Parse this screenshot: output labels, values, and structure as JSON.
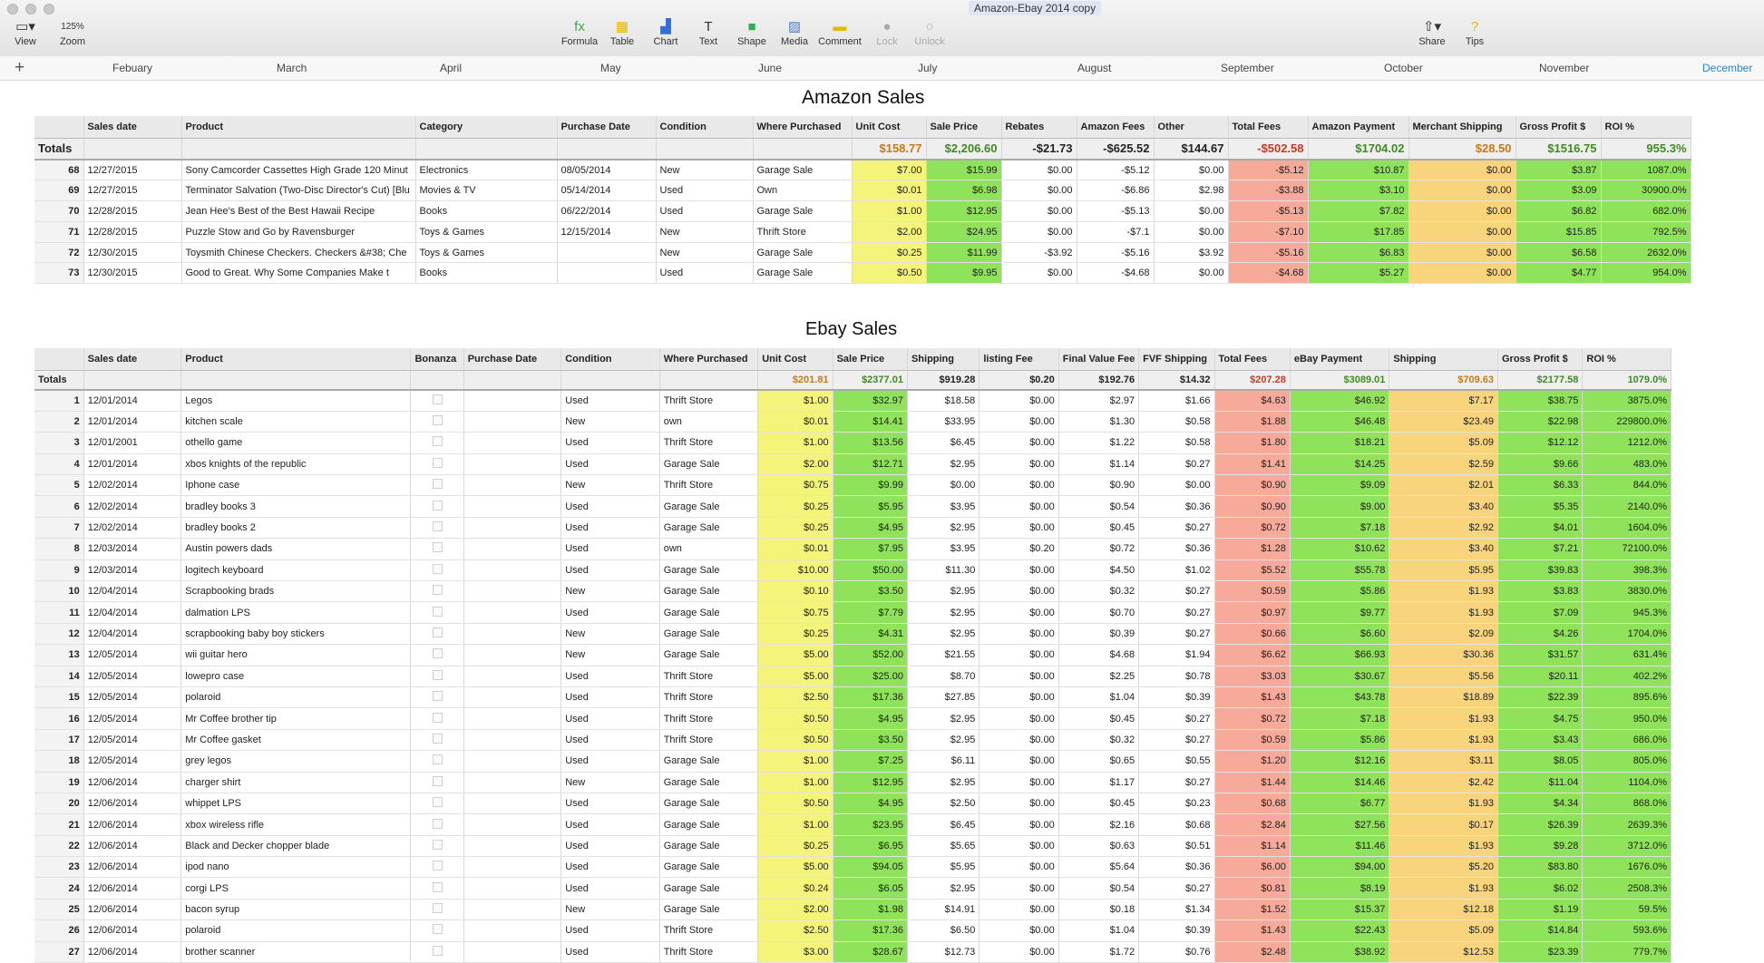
{
  "window": {
    "title": "Amazon-Ebay 2014 copy"
  },
  "toolbar": {
    "view": "View",
    "zoom": "Zoom",
    "zoom_value": "125%",
    "formula": "Formula",
    "table": "Table",
    "chart": "Chart",
    "text": "Text",
    "shape": "Shape",
    "media": "Media",
    "comment": "Comment",
    "lock": "Lock",
    "unlock": "Unlock",
    "share": "Share",
    "tips": "Tips"
  },
  "sheets": [
    "Febuary",
    "March",
    "April",
    "May",
    "June",
    "July",
    "August",
    "September",
    "October",
    "November",
    "December"
  ],
  "active_sheet": "December",
  "amazon": {
    "title": "Amazon Sales",
    "headers": [
      "",
      "Sales date",
      "Product",
      "Category",
      "Purchase Date",
      "Condition",
      "Where Purchased",
      "Unit Cost",
      "Sale Price",
      "Rebates",
      "Amazon Fees",
      "Other",
      "Total Fees",
      "Amazon Payment",
      "Merchant Shipping",
      "Gross Profit $",
      "ROI %"
    ],
    "totals": [
      "Totals",
      "",
      "",
      "",
      "",
      "",
      "",
      "$158.77",
      "$2,206.60",
      "-$21.73",
      "-$625.52",
      "$144.67",
      "-$502.58",
      "$1704.02",
      "$28.50",
      "$1516.75",
      "955.3%"
    ],
    "rows": [
      [
        "68",
        "12/27/2015",
        "Sony Camcorder Cassettes High Grade 120 Minut",
        "Electronics",
        "08/05/2014",
        "New",
        "Garage Sale",
        "$7.00",
        "$15.99",
        "$0.00",
        "-$5.12",
        "$0.00",
        "-$5.12",
        "$10.87",
        "$0.00",
        "$3.87",
        "1087.0%"
      ],
      [
        "69",
        "12/27/2015",
        "Terminator Salvation (Two-Disc Director's Cut) [Blu",
        "Movies & TV",
        "05/14/2014",
        "Used",
        "Own",
        "$0.01",
        "$6.98",
        "$0.00",
        "-$6.86",
        "$2.98",
        "-$3.88",
        "$3.10",
        "$0.00",
        "$3.09",
        "30900.0%"
      ],
      [
        "70",
        "12/28/2015",
        "Jean Hee's Best of the Best Hawaii Recipe",
        "Books",
        "06/22/2014",
        "Used",
        "Garage Sale",
        "$1.00",
        "$12.95",
        "$0.00",
        "-$5.13",
        "$0.00",
        "-$5.13",
        "$7.82",
        "$0.00",
        "$6.82",
        "682.0%"
      ],
      [
        "71",
        "12/28/2015",
        "Puzzle Stow and Go by Ravensburger",
        "Toys & Games",
        "12/15/2014",
        "New",
        "Thrift Store",
        "$2.00",
        "$24.95",
        "$0.00",
        "-$7.1",
        "$0.00",
        "-$7.10",
        "$17.85",
        "$0.00",
        "$15.85",
        "792.5%"
      ],
      [
        "72",
        "12/30/2015",
        "Toysmith Chinese Checkers. Checkers &#38; Che",
        "Toys & Games",
        "",
        "New",
        "Garage Sale",
        "$0.25",
        "$11.99",
        "-$3.92",
        "-$5.16",
        "$3.92",
        "-$5.16",
        "$6.83",
        "$0.00",
        "$6.58",
        "2632.0%"
      ],
      [
        "73",
        "12/30/2015",
        "Good to Great. Why Some Companies Make t",
        "Books",
        "",
        "Used",
        "Garage Sale",
        "$0.50",
        "$9.95",
        "$0.00",
        "-$4.68",
        "$0.00",
        "-$4.68",
        "$5.27",
        "$0.00",
        "$4.77",
        "954.0%"
      ]
    ]
  },
  "ebay": {
    "title": "Ebay Sales",
    "headers": [
      "",
      "Sales date",
      "Product",
      "Bonanza",
      "Purchase Date",
      "Condition",
      "Where Purchased",
      "Unit Cost",
      "Sale Price",
      "Shipping",
      "listing Fee",
      "Final Value Fee",
      "FVF Shipping",
      "Total Fees",
      "eBay Payment",
      "Shipping",
      "Gross Profit $",
      "ROI %"
    ],
    "totals": [
      "Totals",
      "",
      "",
      "",
      "",
      "",
      "",
      "$201.81",
      "$2377.01",
      "$919.28",
      "$0.20",
      "$192.76",
      "$14.32",
      "$207.28",
      "$3089.01",
      "$709.63",
      "$2177.58",
      "1079.0%"
    ],
    "rows": [
      [
        "1",
        "12/01/2014",
        "Legos",
        "",
        "",
        "Used",
        "Thrift Store",
        "$1.00",
        "$32.97",
        "$18.58",
        "$0.00",
        "$2.97",
        "$1.66",
        "$4.63",
        "$46.92",
        "$7.17",
        "$38.75",
        "3875.0%"
      ],
      [
        "2",
        "12/01/2014",
        "kitchen scale",
        "",
        "",
        "New",
        "own",
        "$0.01",
        "$14.41",
        "$33.95",
        "$0.00",
        "$1.30",
        "$0.58",
        "$1.88",
        "$46.48",
        "$23.49",
        "$22.98",
        "229800.0%"
      ],
      [
        "3",
        "12/01/2001",
        "othello game",
        "",
        "",
        "Used",
        "Thrift Store",
        "$1.00",
        "$13.56",
        "$6.45",
        "$0.00",
        "$1.22",
        "$0.58",
        "$1.80",
        "$18.21",
        "$5.09",
        "$12.12",
        "1212.0%"
      ],
      [
        "4",
        "12/01/2014",
        "xbos knights of the republic",
        "",
        "",
        "Used",
        "Garage Sale",
        "$2.00",
        "$12.71",
        "$2.95",
        "$0.00",
        "$1.14",
        "$0.27",
        "$1.41",
        "$14.25",
        "$2.59",
        "$9.66",
        "483.0%"
      ],
      [
        "5",
        "12/02/2014",
        "Iphone case",
        "",
        "",
        "New",
        "Thrift Store",
        "$0.75",
        "$9.99",
        "$0.00",
        "$0.00",
        "$0.90",
        "$0.00",
        "$0.90",
        "$9.09",
        "$2.01",
        "$6.33",
        "844.0%"
      ],
      [
        "6",
        "12/02/2014",
        "bradley books 3",
        "",
        "",
        "Used",
        "Garage Sale",
        "$0.25",
        "$5.95",
        "$3.95",
        "$0.00",
        "$0.54",
        "$0.36",
        "$0.90",
        "$9.00",
        "$3.40",
        "$5.35",
        "2140.0%"
      ],
      [
        "7",
        "12/02/2014",
        "bradley books 2",
        "",
        "",
        "Used",
        "Garage Sale",
        "$0.25",
        "$4.95",
        "$2.95",
        "$0.00",
        "$0.45",
        "$0.27",
        "$0.72",
        "$7.18",
        "$2.92",
        "$4.01",
        "1604.0%"
      ],
      [
        "8",
        "12/03/2014",
        "Austin powers dads",
        "",
        "",
        "Used",
        "own",
        "$0.01",
        "$7.95",
        "$3.95",
        "$0.20",
        "$0.72",
        "$0.36",
        "$1.28",
        "$10.62",
        "$3.40",
        "$7.21",
        "72100.0%"
      ],
      [
        "9",
        "12/03/2014",
        "logitech keyboard",
        "",
        "",
        "Used",
        "Garage Sale",
        "$10.00",
        "$50.00",
        "$11.30",
        "$0.00",
        "$4.50",
        "$1.02",
        "$5.52",
        "$55.78",
        "$5.95",
        "$39.83",
        "398.3%"
      ],
      [
        "10",
        "12/04/2014",
        "Scrapbooking brads",
        "",
        "",
        "New",
        "Garage Sale",
        "$0.10",
        "$3.50",
        "$2.95",
        "$0.00",
        "$0.32",
        "$0.27",
        "$0.59",
        "$5.86",
        "$1.93",
        "$3.83",
        "3830.0%"
      ],
      [
        "11",
        "12/04/2014",
        "dalmation LPS",
        "",
        "",
        "Used",
        "Garage Sale",
        "$0.75",
        "$7.79",
        "$2.95",
        "$0.00",
        "$0.70",
        "$0.27",
        "$0.97",
        "$9.77",
        "$1.93",
        "$7.09",
        "945.3%"
      ],
      [
        "12",
        "12/04/2014",
        "scrapbooking baby boy stickers",
        "",
        "",
        "New",
        "Garage Sale",
        "$0.25",
        "$4.31",
        "$2.95",
        "$0.00",
        "$0.39",
        "$0.27",
        "$0.66",
        "$6.60",
        "$2.09",
        "$4.26",
        "1704.0%"
      ],
      [
        "13",
        "12/05/2014",
        "wii guitar hero",
        "",
        "",
        "New",
        "Garage Sale",
        "$5.00",
        "$52.00",
        "$21.55",
        "$0.00",
        "$4.68",
        "$1.94",
        "$6.62",
        "$66.93",
        "$30.36",
        "$31.57",
        "631.4%"
      ],
      [
        "14",
        "12/05/2014",
        "lowepro case",
        "",
        "",
        "Used",
        "Thrift Store",
        "$5.00",
        "$25.00",
        "$8.70",
        "$0.00",
        "$2.25",
        "$0.78",
        "$3.03",
        "$30.67",
        "$5.56",
        "$20.11",
        "402.2%"
      ],
      [
        "15",
        "12/05/2014",
        "polaroid",
        "",
        "",
        "Used",
        "Thrift Store",
        "$2.50",
        "$17.36",
        "$27.85",
        "$0.00",
        "$1.04",
        "$0.39",
        "$1.43",
        "$43.78",
        "$18.89",
        "$22.39",
        "895.6%"
      ],
      [
        "16",
        "12/05/2014",
        "Mr Coffee brother tip",
        "",
        "",
        "Used",
        "Thrift Store",
        "$0.50",
        "$4.95",
        "$2.95",
        "$0.00",
        "$0.45",
        "$0.27",
        "$0.72",
        "$7.18",
        "$1.93",
        "$4.75",
        "950.0%"
      ],
      [
        "17",
        "12/05/2014",
        "Mr Coffee gasket",
        "",
        "",
        "Used",
        "Thrift Store",
        "$0.50",
        "$3.50",
        "$2.95",
        "$0.00",
        "$0.32",
        "$0.27",
        "$0.59",
        "$5.86",
        "$1.93",
        "$3.43",
        "686.0%"
      ],
      [
        "18",
        "12/05/2014",
        "grey legos",
        "",
        "",
        "Used",
        "Garage Sale",
        "$1.00",
        "$7.25",
        "$6.11",
        "$0.00",
        "$0.65",
        "$0.55",
        "$1.20",
        "$12.16",
        "$3.11",
        "$8.05",
        "805.0%"
      ],
      [
        "19",
        "12/06/2014",
        "charger shirt",
        "",
        "",
        "New",
        "Garage Sale",
        "$1.00",
        "$12.95",
        "$2.95",
        "$0.00",
        "$1.17",
        "$0.27",
        "$1.44",
        "$14.46",
        "$2.42",
        "$11.04",
        "1104.0%"
      ],
      [
        "20",
        "12/06/2014",
        "whippet LPS",
        "",
        "",
        "Used",
        "Garage Sale",
        "$0.50",
        "$4.95",
        "$2.50",
        "$0.00",
        "$0.45",
        "$0.23",
        "$0.68",
        "$6.77",
        "$1.93",
        "$4.34",
        "868.0%"
      ],
      [
        "21",
        "12/06/2014",
        "xbox wireless rifle",
        "",
        "",
        "Used",
        "Garage Sale",
        "$1.00",
        "$23.95",
        "$6.45",
        "$0.00",
        "$2.16",
        "$0.68",
        "$2.84",
        "$27.56",
        "$0.17",
        "$26.39",
        "2639.3%"
      ],
      [
        "22",
        "12/06/2014",
        "Black and Decker chopper blade",
        "",
        "",
        "Used",
        "Garage Sale",
        "$0.25",
        "$6.95",
        "$5.65",
        "$0.00",
        "$0.63",
        "$0.51",
        "$1.14",
        "$11.46",
        "$1.93",
        "$9.28",
        "3712.0%"
      ],
      [
        "23",
        "12/06/2014",
        "ipod nano",
        "",
        "",
        "Used",
        "Garage Sale",
        "$5.00",
        "$94.05",
        "$5.95",
        "$0.00",
        "$5.64",
        "$0.36",
        "$6.00",
        "$94.00",
        "$5.20",
        "$83.80",
        "1676.0%"
      ],
      [
        "24",
        "12/06/2014",
        "corgi LPS",
        "",
        "",
        "Used",
        "Garage Sale",
        "$0.24",
        "$6.05",
        "$2.95",
        "$0.00",
        "$0.54",
        "$0.27",
        "$0.81",
        "$8.19",
        "$1.93",
        "$6.02",
        "2508.3%"
      ],
      [
        "25",
        "12/06/2014",
        "bacon syrup",
        "",
        "",
        "New",
        "Garage Sale",
        "$2.00",
        "$1.98",
        "$14.91",
        "$0.00",
        "$0.18",
        "$1.34",
        "$1.52",
        "$15.37",
        "$12.18",
        "$1.19",
        "59.5%"
      ],
      [
        "26",
        "12/06/2014",
        "polaroid",
        "",
        "",
        "Used",
        "Thrift Store",
        "$2.50",
        "$17.36",
        "$6.50",
        "$0.00",
        "$1.04",
        "$0.39",
        "$1.43",
        "$22.43",
        "$5.09",
        "$14.84",
        "593.6%"
      ],
      [
        "27",
        "12/06/2014",
        "brother scanner",
        "",
        "",
        "Used",
        "Thrift Store",
        "$3.00",
        "$28.67",
        "$12.73",
        "$0.00",
        "$1.72",
        "$0.76",
        "$2.48",
        "$38.92",
        "$12.53",
        "$23.39",
        "779.7%"
      ]
    ]
  },
  "colors": {
    "unit_cost_fill": "#f4f47a",
    "sale_price_fill": "#8fe35a",
    "fees_fill": "#f7aa9a",
    "shipping_fill": "#f8d47c",
    "payment_fill": "#8fe35a",
    "active_tab": "#2f7fd6"
  }
}
